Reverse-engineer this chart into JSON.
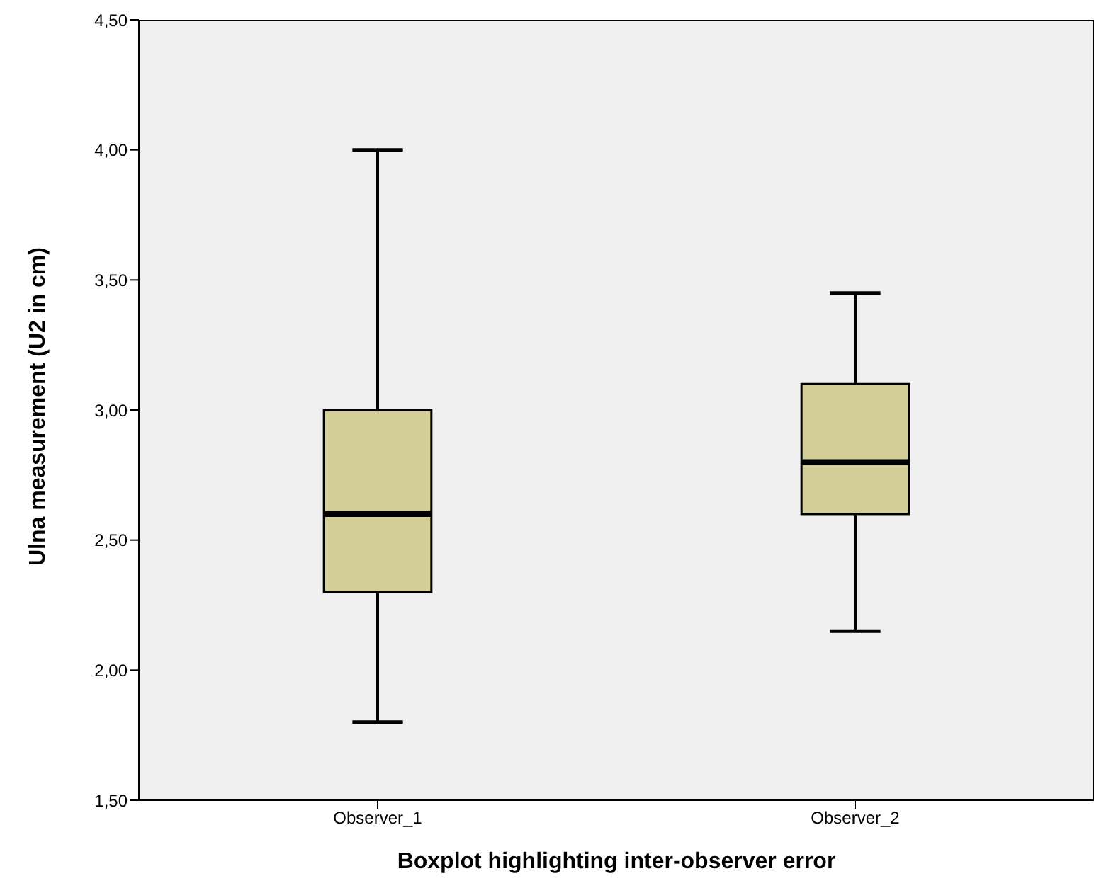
{
  "chart_data": {
    "type": "box",
    "xlabel": "Boxplot highlighting inter-observer error",
    "ylabel": "Ulna measurement (U2 in cm)",
    "categories": [
      "Observer_1",
      "Observer_2"
    ],
    "boxes": [
      {
        "low": 1.8,
        "q1": 2.3,
        "median": 2.6,
        "q3": 3.0,
        "high": 4.0
      },
      {
        "low": 2.15,
        "q1": 2.6,
        "median": 2.8,
        "q3": 3.1,
        "high": 3.45
      }
    ],
    "color": "#d3ce97",
    "ylim": [
      1.5,
      4.5
    ],
    "yticks": [
      {
        "value": 1.5,
        "label": "1,50"
      },
      {
        "value": 2,
        "label": "2,00"
      },
      {
        "value": 2.5,
        "label": "2,50"
      },
      {
        "value": 3,
        "label": "3,00"
      },
      {
        "value": 3.5,
        "label": "3,50"
      },
      {
        "value": 4,
        "label": "4,00"
      },
      {
        "value": 4.5,
        "label": "4,50"
      }
    ],
    "grid": false
  }
}
